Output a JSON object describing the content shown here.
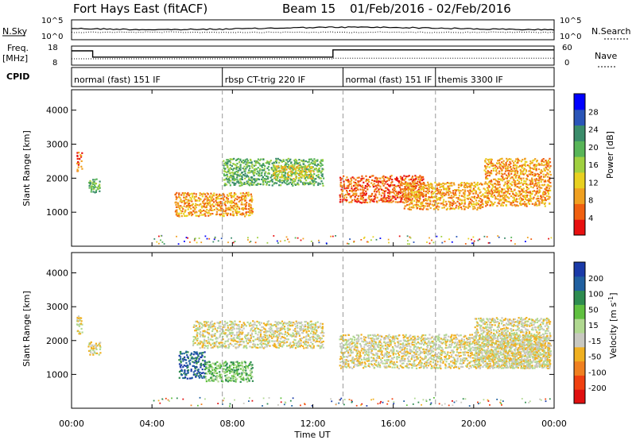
{
  "header": {
    "station": "Fort Hays East (fitACF)",
    "beam": "Beam 15",
    "date_range": "01/Feb/2016 - 02/Feb/2016"
  },
  "top_panels": {
    "nsky_label": "N.Sky",
    "nsearch_label": "N.Search",
    "nsky_ticks": [
      "10^5",
      "10^0"
    ],
    "freq_label": "Freq.",
    "freq_unit": "[MHz]",
    "freq_ticks": [
      "18",
      "8"
    ],
    "nave_label": "Nave",
    "nave_ticks": [
      "60",
      "0"
    ],
    "cpid_label": "CPID",
    "cpid_segments": [
      {
        "label": "normal (fast) 151 IF",
        "start_h": 0.0
      },
      {
        "label": "rbsp CT-trig 220 IF",
        "start_h": 7.5
      },
      {
        "label": "normal (fast) 151 IF",
        "start_h": 13.5
      },
      {
        "label": "themis 3300 IF",
        "start_h": 18.1
      }
    ],
    "freq_series": [
      [
        0,
        15.5
      ],
      [
        1.05,
        15.5
      ],
      [
        1.05,
        12.2
      ],
      [
        13.0,
        12.2
      ],
      [
        13.0,
        16.0
      ],
      [
        24,
        16.0
      ]
    ],
    "nave_series": [
      [
        0,
        20
      ],
      [
        13.0,
        20
      ],
      [
        13.0,
        22
      ],
      [
        24,
        22
      ]
    ]
  },
  "chart_data": [
    {
      "type": "heatmap",
      "name": "power",
      "ylabel": "Slant Range [km]",
      "xlabel": "",
      "x_range_h": [
        0,
        24
      ],
      "ylim": [
        0,
        4600
      ],
      "y_ticks": [
        1000,
        2000,
        3000,
        4000
      ],
      "colorbar": {
        "label": "Power [dB]",
        "ticks": [
          "28",
          "24",
          "20",
          "16",
          "12",
          "8",
          "4"
        ],
        "colors": [
          "#0000ff",
          "#2a55b8",
          "#3a8c6a",
          "#58b558",
          "#a0d040",
          "#e8d020",
          "#f0a020",
          "#f06010",
          "#e81010"
        ]
      },
      "bands": [
        {
          "h0": 0.2,
          "h1": 0.5,
          "r0": 2200,
          "r1": 2800,
          "level": 7
        },
        {
          "h0": 0.8,
          "h1": 1.4,
          "r0": 1600,
          "r1": 2000,
          "level": 3
        },
        {
          "h0": 5.1,
          "h1": 9.0,
          "r0": 900,
          "r1": 1600,
          "level": 6
        },
        {
          "h0": 7.5,
          "h1": 12.5,
          "r0": 1800,
          "r1": 2600,
          "level": 3
        },
        {
          "h0": 10.0,
          "h1": 12.0,
          "r0": 2000,
          "r1": 2400,
          "level": 5
        },
        {
          "h0": 13.3,
          "h1": 17.5,
          "r0": 1300,
          "r1": 2100,
          "level": 7
        },
        {
          "h0": 16.5,
          "h1": 20.5,
          "r0": 1100,
          "r1": 1900,
          "level": 6
        },
        {
          "h0": 20.5,
          "h1": 23.8,
          "r0": 1200,
          "r1": 2600,
          "level": 6
        }
      ]
    },
    {
      "type": "heatmap",
      "name": "velocity",
      "ylabel": "Slant Range [km]",
      "xlabel": "Time UT",
      "x_range_h": [
        0,
        24
      ],
      "ylim": [
        0,
        4600
      ],
      "y_ticks": [
        1000,
        2000,
        3000,
        4000
      ],
      "x_ticks": [
        "00:00",
        "04:00",
        "08:00",
        "12:00",
        "16:00",
        "20:00",
        "00:00"
      ],
      "colorbar": {
        "label": "Velocity [m s",
        "label_sup": "-1",
        "label_end": "]",
        "ticks": [
          "200",
          "100",
          "50",
          "15",
          "-15",
          "-50",
          "-100",
          "-200"
        ],
        "colors": [
          "#1a3aa8",
          "#2060a0",
          "#2e8c50",
          "#60c040",
          "#b0d890",
          "#c8c8c0",
          "#f0b020",
          "#f08020",
          "#f04010",
          "#e01010"
        ]
      },
      "bands": [
        {
          "h0": 0.2,
          "h1": 0.5,
          "r0": 2200,
          "r1": 2800,
          "level": 5
        },
        {
          "h0": 0.8,
          "h1": 1.4,
          "r0": 1600,
          "r1": 2000,
          "level": 5
        },
        {
          "h0": 5.3,
          "h1": 6.6,
          "r0": 900,
          "r1": 1700,
          "level": 1
        },
        {
          "h0": 6.6,
          "h1": 9.0,
          "r0": 800,
          "r1": 1400,
          "level": 3
        },
        {
          "h0": 6.0,
          "h1": 12.5,
          "r0": 1800,
          "r1": 2600,
          "level": 5
        },
        {
          "h0": 13.3,
          "h1": 23.8,
          "r0": 1200,
          "r1": 2200,
          "level": 5
        },
        {
          "h0": 20.0,
          "h1": 23.8,
          "r0": 1200,
          "r1": 2700,
          "level": 5
        }
      ]
    }
  ]
}
